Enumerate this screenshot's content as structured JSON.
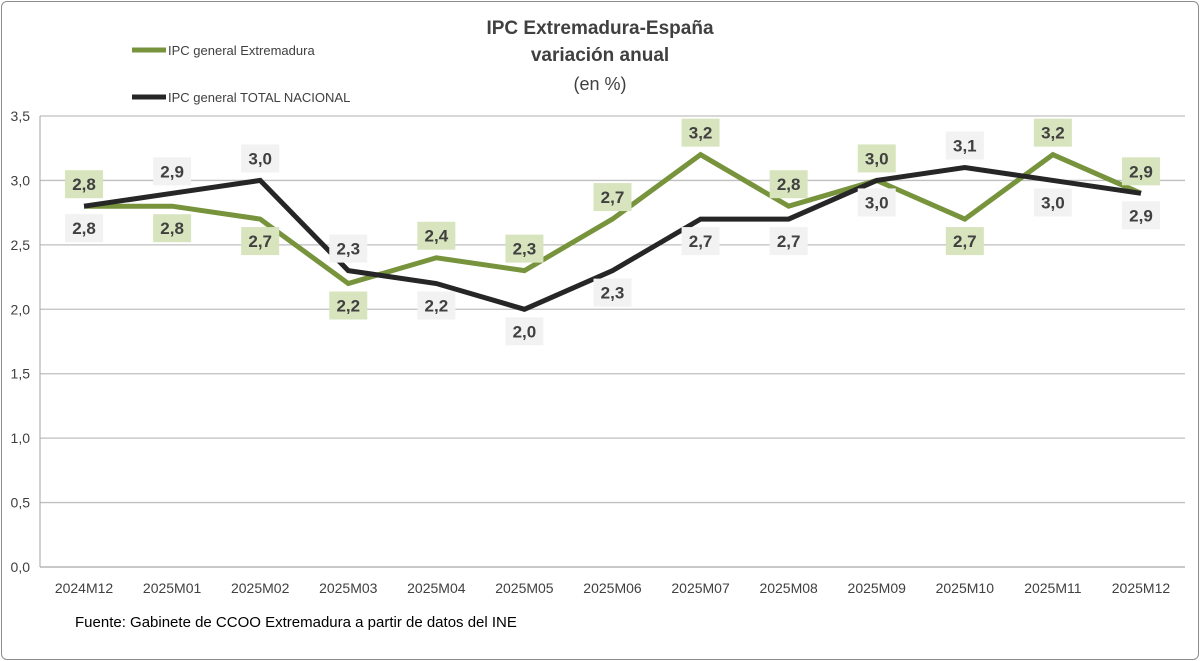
{
  "chart_data": {
    "type": "line",
    "title": "IPC Extremadura-España",
    "subtitle": "variación anual",
    "unit_note": "(en %)",
    "categories": [
      "2024M12",
      "2025M01",
      "2025M02",
      "2025M03",
      "2025M04",
      "2025M05",
      "2025M06",
      "2025M07",
      "2025M08",
      "2025M09",
      "2025M10",
      "2025M11",
      "2025M12"
    ],
    "ylim": [
      0,
      3.5
    ],
    "yticks": [
      "0,0",
      "0,5",
      "1,0",
      "1,5",
      "2,0",
      "2,5",
      "3,0",
      "3,5"
    ],
    "grid": true,
    "legend": "top-left",
    "series": [
      {
        "name": "IPC general Extremadura",
        "color": "#77933c",
        "label_bg": "#d7e4bd",
        "values": [
          2.8,
          2.8,
          2.7,
          2.2,
          2.4,
          2.3,
          2.7,
          3.2,
          2.8,
          3.0,
          2.7,
          3.2,
          2.9
        ]
      },
      {
        "name": "IPC general TOTAL NACIONAL",
        "color": "#262626",
        "label_bg": "#f2f2f2",
        "values": [
          2.8,
          2.9,
          3.0,
          2.3,
          2.2,
          2.0,
          2.3,
          2.7,
          2.7,
          3.0,
          3.1,
          3.0,
          2.9
        ]
      }
    ]
  },
  "source": "Fuente: Gabinete de CCOO Extremadura a partir de datos del INE"
}
